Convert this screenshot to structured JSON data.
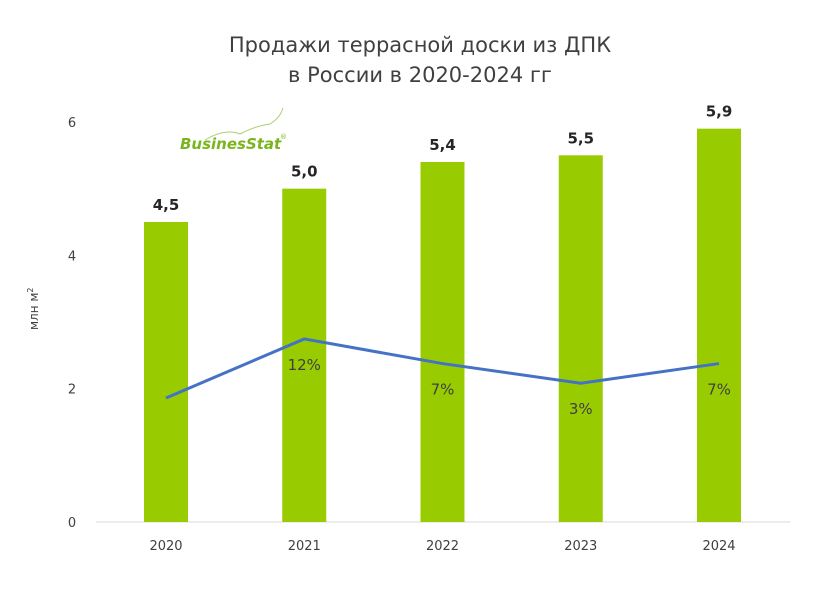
{
  "chart_data": {
    "type": "bar",
    "title": [
      "Продажи террасной доски из ДПК",
      "в России в 2020-2024 гг"
    ],
    "ylabel": "млн м",
    "ylabel_sup": "2",
    "ylim": [
      0,
      6
    ],
    "yticks": [
      "0",
      "2",
      "4",
      "6"
    ],
    "ytick_values": [
      0,
      2,
      4,
      6
    ],
    "categories": [
      "2020",
      "2021",
      "2022",
      "2023",
      "2024"
    ],
    "series": [
      {
        "type": "bar",
        "values": [
          4.5,
          5.0,
          5.4,
          5.5,
          5.9
        ],
        "labels": [
          "4,5",
          "5,0",
          "5,4",
          "5,5",
          "5,9"
        ],
        "color": "#99cc00"
      },
      {
        "type": "line",
        "axis": "secondary-hidden",
        "values": [
          0,
          12,
          7,
          3,
          7
        ],
        "labels": [
          "",
          "12%",
          "7%",
          "3%",
          "7%"
        ],
        "color": "#4472c4"
      }
    ],
    "grid": false,
    "legend": "none"
  },
  "logo": {
    "text": "BusinesStat",
    "mark": "®"
  }
}
